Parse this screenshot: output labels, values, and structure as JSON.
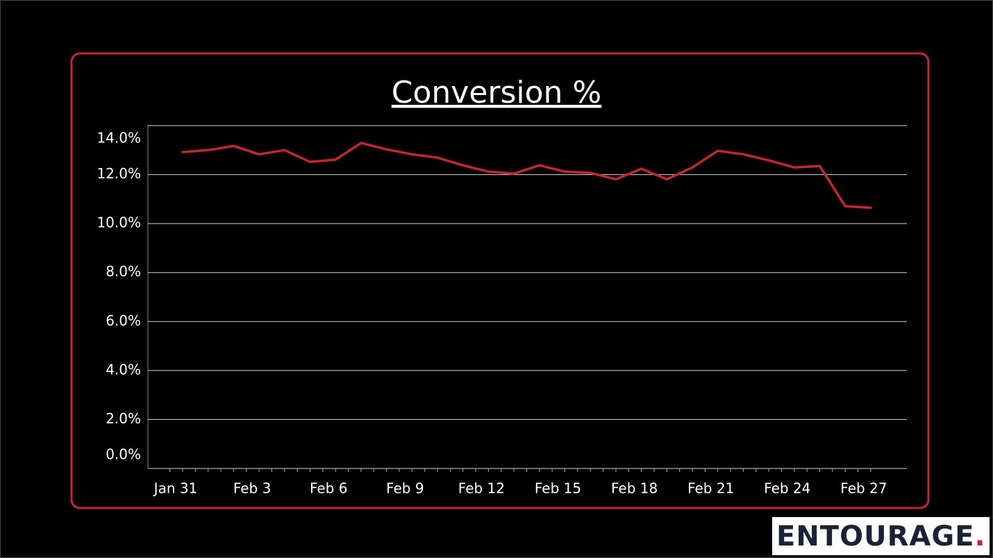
{
  "chart_data": {
    "type": "line",
    "title": "Conversion %",
    "categories": [
      "Jan 31",
      null,
      null,
      "Feb 3",
      null,
      null,
      "Feb 6",
      null,
      null,
      "Feb 9",
      null,
      null,
      "Feb 12",
      null,
      null,
      "Feb 15",
      null,
      null,
      "Feb 18",
      null,
      null,
      "Feb 21",
      null,
      null,
      "Feb 24",
      null,
      null,
      "Feb 27"
    ],
    "values": [
      12.92,
      13.0,
      13.17,
      12.83,
      13.0,
      12.52,
      12.61,
      13.29,
      13.03,
      12.83,
      12.69,
      12.38,
      12.12,
      12.04,
      12.38,
      12.12,
      12.07,
      11.81,
      12.24,
      11.81,
      12.29,
      12.97,
      12.83,
      12.58,
      12.29,
      12.35,
      10.71,
      10.65
    ],
    "color": "#c8262e",
    "ylim": [
      0,
      14
    ],
    "yticks": [
      {
        "value": 0,
        "label": "0.0%"
      },
      {
        "value": 2,
        "label": "2.0%"
      },
      {
        "value": 4,
        "label": "4.0%"
      },
      {
        "value": 6,
        "label": "6.0%"
      },
      {
        "value": 8,
        "label": "8.0%"
      },
      {
        "value": 10,
        "label": "10.0%"
      },
      {
        "value": 12,
        "label": "12.0%"
      },
      {
        "value": 14,
        "label": "14.0%"
      }
    ],
    "grid": true
  },
  "logo": {
    "text": "ENTOURAGE",
    "dot": "."
  }
}
